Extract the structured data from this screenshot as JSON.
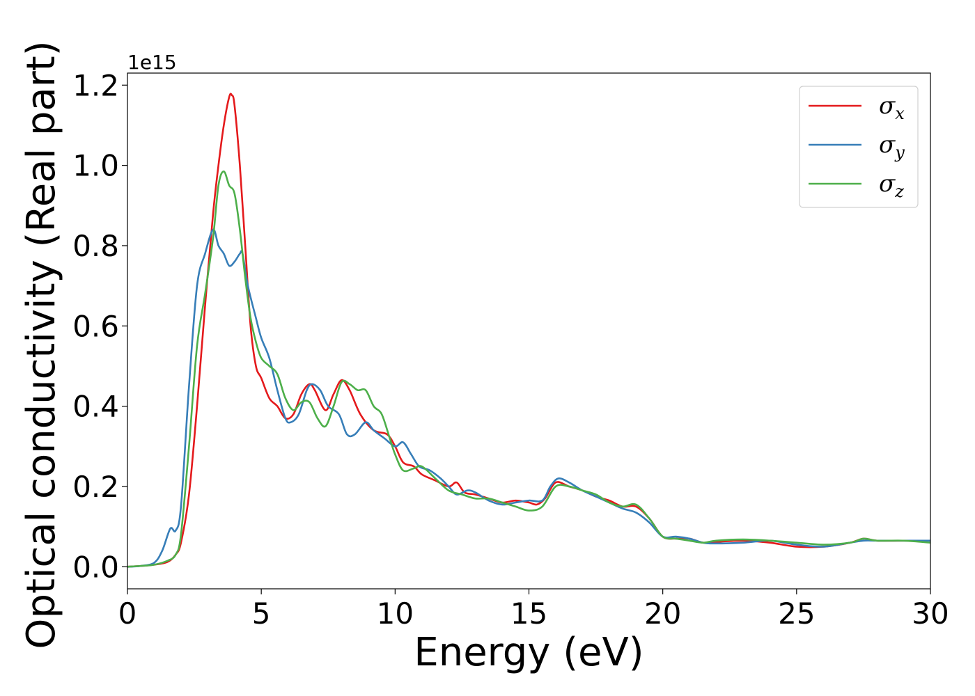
{
  "chart_data": {
    "type": "line",
    "xlabel": "Energy (eV)",
    "ylabel": "Optical conductivity (Real part)",
    "y_offset_label": "1e15",
    "y_scale": 1000000000000000.0,
    "xlim": [
      0,
      30
    ],
    "ylim": [
      -0.055,
      1.23
    ],
    "xticks": [
      0,
      5,
      10,
      15,
      20,
      25,
      30
    ],
    "xtick_labels": [
      "0",
      "5",
      "10",
      "15",
      "20",
      "25",
      "30"
    ],
    "yticks": [
      0.0,
      0.2,
      0.4,
      0.6,
      0.8,
      1.0,
      1.2
    ],
    "ytick_labels": [
      "0.0",
      "0.2",
      "0.4",
      "0.6",
      "0.8",
      "1.0",
      "1.2"
    ],
    "grid": false,
    "legend_position": "top-right",
    "series": [
      {
        "name": "σx",
        "symbol": "σ",
        "sub": "x",
        "color": "#e41a1c",
        "x": [
          0,
          0.5,
          1.0,
          1.5,
          1.8,
          2.0,
          2.3,
          2.6,
          2.9,
          3.2,
          3.4,
          3.6,
          3.8,
          3.9,
          4.0,
          4.2,
          4.4,
          4.6,
          4.8,
          5.0,
          5.3,
          5.6,
          5.9,
          6.2,
          6.5,
          6.8,
          7.0,
          7.4,
          7.7,
          8.0,
          8.3,
          8.7,
          9.2,
          9.7,
          10.0,
          10.3,
          10.7,
          11.0,
          11.5,
          12.0,
          12.3,
          12.6,
          13.0,
          13.5,
          14.0,
          14.5,
          15.0,
          15.3,
          15.6,
          16.0,
          16.5,
          17.0,
          17.5,
          18.0,
          18.5,
          19.0,
          19.5,
          20.0,
          20.5,
          21.0,
          21.5,
          22.0,
          23.0,
          24.0,
          25.0,
          26.0,
          27.0,
          27.5,
          28.0,
          29.0,
          30.0
        ],
        "y": [
          0.0,
          0.002,
          0.005,
          0.012,
          0.03,
          0.06,
          0.18,
          0.4,
          0.65,
          0.88,
          1.0,
          1.1,
          1.17,
          1.175,
          1.15,
          1.0,
          0.8,
          0.6,
          0.5,
          0.47,
          0.42,
          0.4,
          0.37,
          0.38,
          0.43,
          0.455,
          0.44,
          0.39,
          0.43,
          0.465,
          0.44,
          0.38,
          0.34,
          0.33,
          0.3,
          0.26,
          0.25,
          0.23,
          0.215,
          0.2,
          0.21,
          0.185,
          0.18,
          0.17,
          0.16,
          0.165,
          0.16,
          0.155,
          0.17,
          0.21,
          0.2,
          0.19,
          0.175,
          0.165,
          0.15,
          0.15,
          0.12,
          0.075,
          0.07,
          0.07,
          0.06,
          0.062,
          0.065,
          0.06,
          0.05,
          0.05,
          0.06,
          0.07,
          0.065,
          0.065,
          0.065
        ]
      },
      {
        "name": "σy",
        "symbol": "σ",
        "sub": "y",
        "color": "#377eb8",
        "x": [
          0,
          0.5,
          1.0,
          1.3,
          1.6,
          1.8,
          2.0,
          2.3,
          2.6,
          2.9,
          3.2,
          3.4,
          3.6,
          3.8,
          4.0,
          4.2,
          4.3,
          4.5,
          4.8,
          5.0,
          5.3,
          5.6,
          5.9,
          6.1,
          6.4,
          6.7,
          6.9,
          7.2,
          7.5,
          7.9,
          8.2,
          8.5,
          8.9,
          9.2,
          9.6,
          10.0,
          10.3,
          10.6,
          10.9,
          11.3,
          11.7,
          12.0,
          12.3,
          12.7,
          13.0,
          13.5,
          14.0,
          14.5,
          15.0,
          15.5,
          15.8,
          16.1,
          16.5,
          17.0,
          17.5,
          18.0,
          18.5,
          19.0,
          19.5,
          20.0,
          20.5,
          21.0,
          21.5,
          22.0,
          23.0,
          24.0,
          25.0,
          26.0,
          27.0,
          27.5,
          28.0,
          29.0,
          30.0
        ],
        "y": [
          0.0,
          0.002,
          0.01,
          0.04,
          0.095,
          0.09,
          0.15,
          0.45,
          0.7,
          0.78,
          0.84,
          0.8,
          0.78,
          0.75,
          0.76,
          0.78,
          0.78,
          0.7,
          0.62,
          0.57,
          0.52,
          0.44,
          0.37,
          0.36,
          0.38,
          0.44,
          0.455,
          0.44,
          0.4,
          0.38,
          0.33,
          0.33,
          0.36,
          0.34,
          0.32,
          0.3,
          0.31,
          0.28,
          0.25,
          0.24,
          0.22,
          0.2,
          0.18,
          0.19,
          0.185,
          0.165,
          0.155,
          0.16,
          0.165,
          0.165,
          0.2,
          0.22,
          0.21,
          0.19,
          0.175,
          0.16,
          0.145,
          0.135,
          0.11,
          0.075,
          0.075,
          0.07,
          0.06,
          0.058,
          0.06,
          0.065,
          0.055,
          0.05,
          0.06,
          0.065,
          0.065,
          0.065,
          0.065
        ]
      },
      {
        "name": "σz",
        "symbol": "σ",
        "sub": "z",
        "color": "#4daf4a",
        "x": [
          0,
          0.5,
          1.0,
          1.5,
          1.8,
          2.0,
          2.3,
          2.6,
          2.9,
          3.2,
          3.4,
          3.6,
          3.8,
          4.0,
          4.2,
          4.4,
          4.6,
          4.8,
          5.0,
          5.3,
          5.6,
          5.9,
          6.2,
          6.5,
          6.8,
          7.1,
          7.4,
          7.7,
          8.0,
          8.3,
          8.6,
          8.9,
          9.2,
          9.5,
          9.8,
          10.0,
          10.3,
          10.7,
          11.0,
          11.5,
          12.0,
          12.5,
          13.0,
          13.5,
          14.0,
          14.5,
          15.0,
          15.5,
          16.0,
          16.5,
          17.0,
          17.5,
          18.0,
          18.5,
          19.0,
          19.5,
          20.0,
          20.5,
          21.0,
          21.5,
          22.0,
          23.0,
          24.0,
          25.0,
          26.0,
          27.0,
          27.5,
          28.0,
          29.0,
          30.0
        ],
        "y": [
          0.0,
          0.002,
          0.005,
          0.015,
          0.03,
          0.08,
          0.3,
          0.55,
          0.68,
          0.82,
          0.95,
          0.985,
          0.95,
          0.93,
          0.84,
          0.72,
          0.62,
          0.56,
          0.52,
          0.5,
          0.48,
          0.42,
          0.39,
          0.41,
          0.41,
          0.37,
          0.35,
          0.4,
          0.46,
          0.455,
          0.44,
          0.44,
          0.4,
          0.38,
          0.32,
          0.28,
          0.24,
          0.245,
          0.25,
          0.22,
          0.19,
          0.18,
          0.17,
          0.17,
          0.16,
          0.15,
          0.14,
          0.15,
          0.2,
          0.2,
          0.19,
          0.18,
          0.16,
          0.15,
          0.155,
          0.12,
          0.075,
          0.07,
          0.065,
          0.06,
          0.065,
          0.068,
          0.065,
          0.06,
          0.055,
          0.06,
          0.07,
          0.065,
          0.065,
          0.06
        ]
      }
    ]
  }
}
